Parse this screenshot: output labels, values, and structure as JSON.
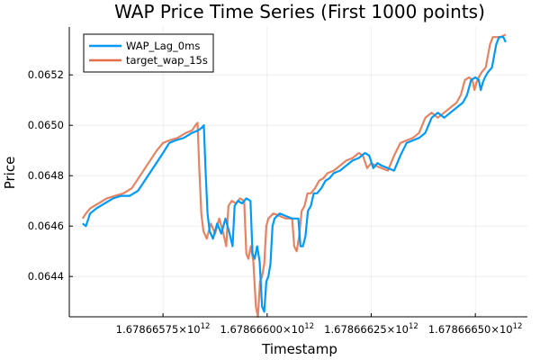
{
  "chart_data": {
    "type": "line",
    "title": "WAP Price Time Series (First 1000 points)",
    "xlabel": "Timestamp",
    "ylabel": "Price",
    "xlim": [
      1678665525000,
      1678666625000
    ],
    "ylim": [
      0.06424,
      0.06539
    ],
    "x_ticks": [
      {
        "value": 1678665750000,
        "label_mantissa": "1.67866575",
        "label_exp": "12"
      },
      {
        "value": 1678666000000,
        "label_mantissa": "1.67866600",
        "label_exp": "12"
      },
      {
        "value": 1678666250000,
        "label_mantissa": "1.67866625",
        "label_exp": "12"
      },
      {
        "value": 1678666500000,
        "label_mantissa": "1.67866650",
        "label_exp": "12"
      }
    ],
    "y_ticks": [
      {
        "value": 0.0644,
        "label": "0.0644"
      },
      {
        "value": 0.0646,
        "label": "0.0646"
      },
      {
        "value": 0.0648,
        "label": "0.0648"
      },
      {
        "value": 0.065,
        "label": "0.0650"
      },
      {
        "value": 0.0652,
        "label": "0.0652"
      }
    ],
    "grid": true,
    "legend_position": "top-left",
    "series": [
      {
        "name": "WAP_Lag_0ms",
        "color": "#009af9",
        "points": [
          [
            1678665557000,
            0.06461
          ],
          [
            1678665565000,
            0.0646
          ],
          [
            1678665575000,
            0.06465
          ],
          [
            1678665590000,
            0.06467
          ],
          [
            1678665610000,
            0.06469
          ],
          [
            1678665630000,
            0.06471
          ],
          [
            1678665650000,
            0.06472
          ],
          [
            1678665670000,
            0.06472
          ],
          [
            1678665690000,
            0.06474
          ],
          [
            1678665710000,
            0.06479
          ],
          [
            1678665730000,
            0.06484
          ],
          [
            1678665750000,
            0.06489
          ],
          [
            1678665765000,
            0.06493
          ],
          [
            1678665780000,
            0.06494
          ],
          [
            1678665800000,
            0.06495
          ],
          [
            1678665820000,
            0.06497
          ],
          [
            1678665835000,
            0.06498
          ],
          [
            1678665843000,
            0.06499
          ],
          [
            1678665848000,
            0.065
          ],
          [
            1678665852000,
            0.06483
          ],
          [
            1678665857000,
            0.06465
          ],
          [
            1678665862000,
            0.06458
          ],
          [
            1678665870000,
            0.06455
          ],
          [
            1678665880000,
            0.06461
          ],
          [
            1678665890000,
            0.06457
          ],
          [
            1678665900000,
            0.06463
          ],
          [
            1678665910000,
            0.06457
          ],
          [
            1678665917000,
            0.06452
          ],
          [
            1678665922000,
            0.06468
          ],
          [
            1678665930000,
            0.0647
          ],
          [
            1678665940000,
            0.06469
          ],
          [
            1678665950000,
            0.06471
          ],
          [
            1678665960000,
            0.0647
          ],
          [
            1678665965000,
            0.06449
          ],
          [
            1678665970000,
            0.06447
          ],
          [
            1678665976000,
            0.06452
          ],
          [
            1678665982000,
            0.06446
          ],
          [
            1678665988000,
            0.06428
          ],
          [
            1678665993000,
            0.06426
          ],
          [
            1678665998000,
            0.06438
          ],
          [
            1678666003000,
            0.0644
          ],
          [
            1678666008000,
            0.06445
          ],
          [
            1678666013000,
            0.0646
          ],
          [
            1678666018000,
            0.06463
          ],
          [
            1678666030000,
            0.06465
          ],
          [
            1678666045000,
            0.06464
          ],
          [
            1678666060000,
            0.06463
          ],
          [
            1678666070000,
            0.06463
          ],
          [
            1678666075000,
            0.06463
          ],
          [
            1678666080000,
            0.06452
          ],
          [
            1678666086000,
            0.06452
          ],
          [
            1678666092000,
            0.06456
          ],
          [
            1678666098000,
            0.06466
          ],
          [
            1678666105000,
            0.06468
          ],
          [
            1678666112000,
            0.06473
          ],
          [
            1678666120000,
            0.06473
          ],
          [
            1678666130000,
            0.06475
          ],
          [
            1678666140000,
            0.06478
          ],
          [
            1678666150000,
            0.06479
          ],
          [
            1678666160000,
            0.06481
          ],
          [
            1678666175000,
            0.06482
          ],
          [
            1678666190000,
            0.06484
          ],
          [
            1678666205000,
            0.06486
          ],
          [
            1678666220000,
            0.06487
          ],
          [
            1678666235000,
            0.06489
          ],
          [
            1678666245000,
            0.06488
          ],
          [
            1678666255000,
            0.06483
          ],
          [
            1678666265000,
            0.06485
          ],
          [
            1678666275000,
            0.06484
          ],
          [
            1678666290000,
            0.06483
          ],
          [
            1678666305000,
            0.06482
          ],
          [
            1678666320000,
            0.06488
          ],
          [
            1678666335000,
            0.06493
          ],
          [
            1678666350000,
            0.06494
          ],
          [
            1678666365000,
            0.06495
          ],
          [
            1678666380000,
            0.06497
          ],
          [
            1678666395000,
            0.06503
          ],
          [
            1678666410000,
            0.06505
          ],
          [
            1678666425000,
            0.06503
          ],
          [
            1678666440000,
            0.06505
          ],
          [
            1678666455000,
            0.06507
          ],
          [
            1678666470000,
            0.06509
          ],
          [
            1678666480000,
            0.06512
          ],
          [
            1678666490000,
            0.06518
          ],
          [
            1678666500000,
            0.06519
          ],
          [
            1678666508000,
            0.06518
          ],
          [
            1678666513000,
            0.06514
          ],
          [
            1678666518000,
            0.06517
          ],
          [
            1678666523000,
            0.06519
          ],
          [
            1678666530000,
            0.06521
          ],
          [
            1678666540000,
            0.06523
          ],
          [
            1678666550000,
            0.06532
          ],
          [
            1678666557000,
            0.06535
          ],
          [
            1678666567000,
            0.06535
          ],
          [
            1678666573000,
            0.06533
          ]
        ]
      },
      {
        "name": "target_wap_15s",
        "color": "#e26f46",
        "points": [
          [
            1678665557000,
            0.06463
          ],
          [
            1678665565000,
            0.06465
          ],
          [
            1678665575000,
            0.06467
          ],
          [
            1678665595000,
            0.06469
          ],
          [
            1678665615000,
            0.06471
          ],
          [
            1678665635000,
            0.06472
          ],
          [
            1678665655000,
            0.06473
          ],
          [
            1678665675000,
            0.06475
          ],
          [
            1678665695000,
            0.0648
          ],
          [
            1678665715000,
            0.06485
          ],
          [
            1678665735000,
            0.0649
          ],
          [
            1678665750000,
            0.06493
          ],
          [
            1678665765000,
            0.06494
          ],
          [
            1678665785000,
            0.06495
          ],
          [
            1678665805000,
            0.06497
          ],
          [
            1678665820000,
            0.06498
          ],
          [
            1678665828000,
            0.065
          ],
          [
            1678665833000,
            0.06501
          ],
          [
            1678665837000,
            0.06483
          ],
          [
            1678665842000,
            0.06465
          ],
          [
            1678665847000,
            0.06458
          ],
          [
            1678665855000,
            0.06455
          ],
          [
            1678665865000,
            0.06461
          ],
          [
            1678665875000,
            0.06457
          ],
          [
            1678665885000,
            0.06463
          ],
          [
            1678665895000,
            0.06457
          ],
          [
            1678665902000,
            0.06452
          ],
          [
            1678665907000,
            0.06468
          ],
          [
            1678665915000,
            0.0647
          ],
          [
            1678665925000,
            0.06469
          ],
          [
            1678665935000,
            0.06471
          ],
          [
            1678665945000,
            0.0647
          ],
          [
            1678665950000,
            0.06449
          ],
          [
            1678665955000,
            0.06447
          ],
          [
            1678665961000,
            0.06452
          ],
          [
            1678665967000,
            0.06446
          ],
          [
            1678665973000,
            0.06428
          ],
          [
            1678665978000,
            0.06424
          ],
          [
            1678665983000,
            0.06438
          ],
          [
            1678665988000,
            0.0644
          ],
          [
            1678665993000,
            0.06445
          ],
          [
            1678665998000,
            0.0646
          ],
          [
            1678666003000,
            0.06463
          ],
          [
            1678666015000,
            0.06465
          ],
          [
            1678666030000,
            0.06464
          ],
          [
            1678666045000,
            0.06463
          ],
          [
            1678666055000,
            0.06463
          ],
          [
            1678666060000,
            0.06463
          ],
          [
            1678666065000,
            0.06452
          ],
          [
            1678666071000,
            0.0645
          ],
          [
            1678666077000,
            0.06456
          ],
          [
            1678666083000,
            0.06466
          ],
          [
            1678666090000,
            0.06468
          ],
          [
            1678666097000,
            0.06473
          ],
          [
            1678666105000,
            0.06473
          ],
          [
            1678666115000,
            0.06475
          ],
          [
            1678666125000,
            0.06478
          ],
          [
            1678666135000,
            0.06479
          ],
          [
            1678666145000,
            0.06481
          ],
          [
            1678666160000,
            0.06482
          ],
          [
            1678666175000,
            0.06484
          ],
          [
            1678666190000,
            0.06486
          ],
          [
            1678666205000,
            0.06487
          ],
          [
            1678666220000,
            0.06489
          ],
          [
            1678666230000,
            0.06488
          ],
          [
            1678666240000,
            0.06483
          ],
          [
            1678666250000,
            0.06485
          ],
          [
            1678666260000,
            0.06484
          ],
          [
            1678666275000,
            0.06483
          ],
          [
            1678666290000,
            0.06482
          ],
          [
            1678666305000,
            0.06488
          ],
          [
            1678666320000,
            0.06493
          ],
          [
            1678666335000,
            0.06494
          ],
          [
            1678666350000,
            0.06495
          ],
          [
            1678666365000,
            0.06497
          ],
          [
            1678666380000,
            0.06503
          ],
          [
            1678666395000,
            0.06505
          ],
          [
            1678666410000,
            0.06503
          ],
          [
            1678666425000,
            0.06505
          ],
          [
            1678666440000,
            0.06507
          ],
          [
            1678666455000,
            0.06509
          ],
          [
            1678666465000,
            0.06512
          ],
          [
            1678666475000,
            0.06518
          ],
          [
            1678666485000,
            0.06519
          ],
          [
            1678666493000,
            0.06518
          ],
          [
            1678666498000,
            0.06514
          ],
          [
            1678666503000,
            0.06517
          ],
          [
            1678666508000,
            0.06519
          ],
          [
            1678666515000,
            0.06521
          ],
          [
            1678666525000,
            0.06523
          ],
          [
            1678666535000,
            0.06532
          ],
          [
            1678666542000,
            0.06535
          ],
          [
            1678666552000,
            0.06535
          ],
          [
            1678666560000,
            0.06535
          ],
          [
            1678666573000,
            0.06536
          ]
        ]
      }
    ]
  }
}
